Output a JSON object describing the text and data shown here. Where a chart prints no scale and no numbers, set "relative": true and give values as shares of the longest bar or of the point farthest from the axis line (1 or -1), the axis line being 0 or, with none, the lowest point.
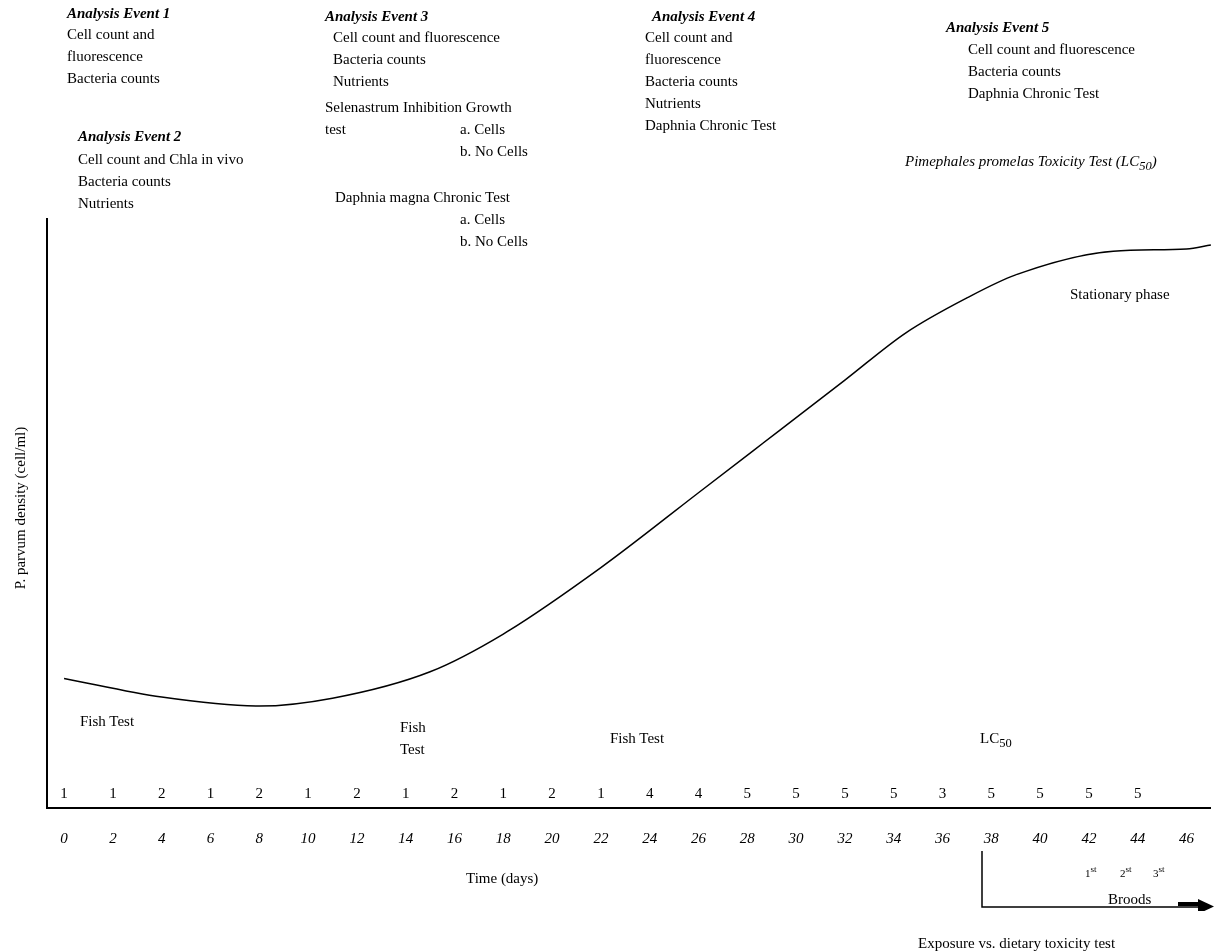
{
  "chart_data": {
    "type": "line",
    "relative": true,
    "color": "#000000",
    "xlabel": "Time (days)",
    "ylabel": "P. parvum density (cell/ml)",
    "x": [
      0,
      4,
      8,
      11,
      15,
      18,
      22,
      26,
      29.3,
      32,
      34.5,
      37,
      39,
      43,
      46,
      47
    ],
    "values": [
      0.23,
      0.197,
      0.181,
      0.195,
      0.242,
      0.309,
      0.427,
      0.56,
      0.67,
      0.76,
      0.844,
      0.906,
      0.947,
      0.989,
      0.993,
      1
    ],
    "xlim": [
      -0.7,
      47
    ],
    "xticks": [
      0,
      2,
      4,
      6,
      8,
      10,
      12,
      14,
      16,
      18,
      20,
      22,
      24,
      26,
      28,
      30,
      32,
      34,
      36,
      38,
      40,
      42,
      44,
      46
    ],
    "annotations": [
      "Analysis Event 1",
      "Cell count and\nfluorescence\nBacteria counts",
      "Analysis Event 2",
      "Cell count and Chla in vivo\nBacteria counts\nNutrients",
      "Analysis Event 3",
      "Cell count and fluorescence\nBacteria counts\nNutrients",
      "Selenastrum Inhibition Growth\ntest",
      "a. Cells\nb. No Cells",
      "Daphnia magna Chronic Test",
      "a. Cells\nb. No Cells",
      "Analysis Event 4",
      "Cell count and\nfluorescence\nBacteria counts\nNutrients\nDaphnia Chronic Test",
      "Analysis Event 5",
      "Cell count and fluorescence\nBacteria counts\nDaphnia Chronic Test",
      "Pimephales promelas Toxicity Test (LC$_{50}$)",
      "Stationary phase",
      "Fish Test",
      "Fish\nTest",
      "Fish Test",
      "LC$_{50}$",
      "1$^{st}$",
      "2$^{st}$",
      "3$^{st}$",
      "Broods",
      "Exposure vs. dietary toxicity test",
      "1",
      "1",
      "2",
      "1",
      "2",
      "1",
      "2",
      "1",
      "2",
      "1",
      "2",
      "1",
      "4",
      "4",
      "5",
      "5",
      "5",
      "5",
      "3",
      "5",
      "5",
      "5",
      "5"
    ]
  }
}
